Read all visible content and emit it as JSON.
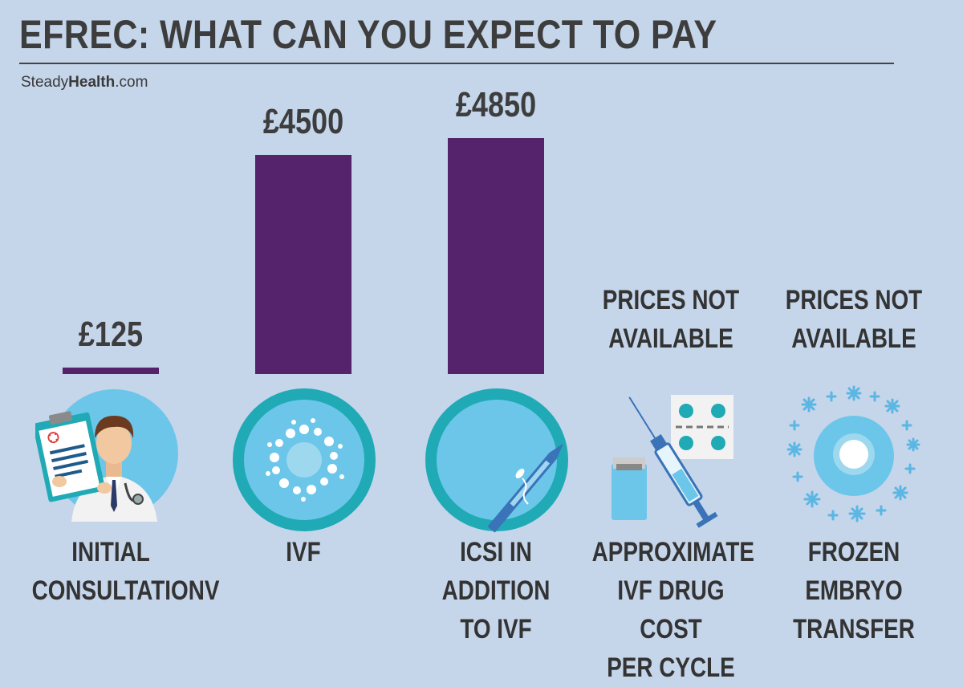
{
  "title": "EFREC: WHAT CAN YOU EXPECT TO PAY",
  "brand": {
    "prefix": "Steady",
    "bold": "Health",
    "suffix": ".com"
  },
  "chart_data": {
    "type": "bar",
    "categories": [
      "INITIAL CONSULTATIONV",
      "IVF",
      "ICSI IN ADDITION TO IVF",
      "APPROXIMATE IVF DRUG COST PER CYCLE",
      "FROZEN EMBRYO TRANSFER"
    ],
    "values": [
      125,
      4500,
      4850,
      null,
      null
    ],
    "value_labels": [
      "£125",
      "£4500",
      "£4850",
      "",
      ""
    ],
    "unavailable_text": [
      "PRICES NOT",
      "AVAILABLE"
    ],
    "label_lines": [
      [
        "INITIAL",
        "CONSULTATIONV"
      ],
      [
        "IVF"
      ],
      [
        "ICSI IN",
        "ADDITION",
        "TO IVF"
      ],
      [
        "APPROXIMATE",
        "IVF DRUG COST",
        "PER CYCLE"
      ],
      [
        "FROZEN",
        "EMBRYO",
        "TRANSFER"
      ]
    ],
    "icons": [
      "doctor-icon",
      "egg-cell-icon",
      "icsi-needle-icon",
      "syringe-pills-icon",
      "frozen-embryo-icon"
    ],
    "bar_color": "#55236b",
    "ylim": [
      0,
      4850
    ],
    "title": "EFREC: WHAT CAN YOU EXPECT TO PAY",
    "xlabel": "",
    "ylabel": "",
    "grid": false
  },
  "colors": {
    "background": "#c5d5ea",
    "bar": "#55236b",
    "circle": "#6cc6ea",
    "ring": "#1faab5"
  }
}
